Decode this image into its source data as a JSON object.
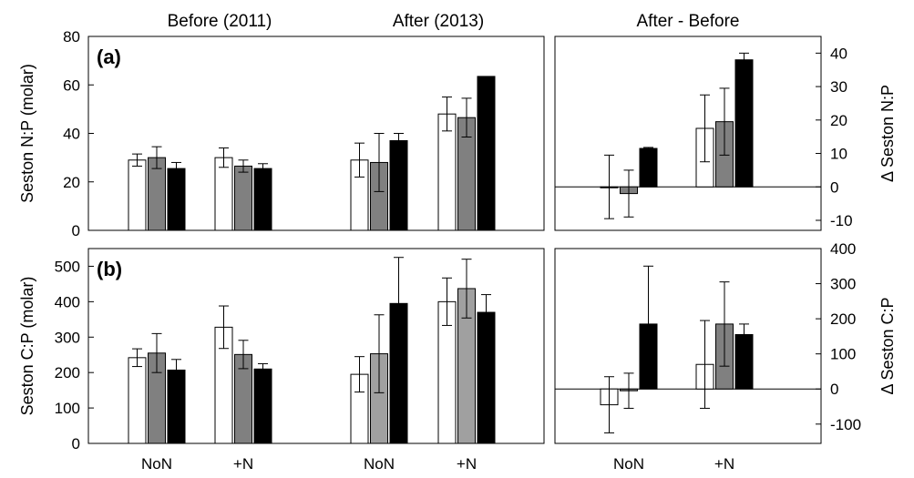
{
  "columns": {
    "before": "Before (2011)",
    "after": "After (2013)",
    "diff": "After - Before"
  },
  "chart_data": [
    {
      "id": "a-before",
      "panel_label": "(a)",
      "type": "bar",
      "ylabel": "Seston N:P (molar)",
      "ylim": [
        0,
        80
      ],
      "yticks": [
        0,
        20,
        40,
        60,
        80
      ],
      "categories": [
        "NoN",
        "+N"
      ],
      "show_categories": false,
      "fills": [
        "#ffffff",
        "#808080",
        "#000000"
      ],
      "values": [
        [
          29,
          30,
          25.5
        ],
        [
          30,
          26.5,
          25.5
        ]
      ],
      "errors": [
        [
          2.5,
          4.5,
          2.5
        ],
        [
          4,
          2.5,
          2
        ]
      ]
    },
    {
      "id": "a-after",
      "type": "bar",
      "ylim": [
        0,
        80
      ],
      "categories": [
        "NoN",
        "+N"
      ],
      "show_categories": false,
      "fills": [
        "#ffffff",
        "#808080",
        "#000000"
      ],
      "values": [
        [
          29,
          28,
          37
        ],
        [
          48,
          46.5,
          63.5
        ]
      ],
      "errors": [
        [
          7,
          12,
          3
        ],
        [
          7,
          8,
          0
        ]
      ]
    },
    {
      "id": "a-diff",
      "type": "bar",
      "ylabel": "Δ Seston N:P",
      "ylim": [
        -13,
        45
      ],
      "yticks": [
        -10,
        0,
        10,
        20,
        30,
        40
      ],
      "categories": [
        "NoN",
        "+N"
      ],
      "show_categories": false,
      "zero_line": true,
      "fills": [
        "#ffffff",
        "#808080",
        "#000000"
      ],
      "values": [
        [
          0,
          -2,
          11.5
        ],
        [
          17.5,
          19.5,
          38
        ]
      ],
      "errors": [
        [
          9.5,
          7,
          0.3
        ],
        [
          10,
          10,
          2
        ]
      ]
    },
    {
      "id": "b-before",
      "panel_label": "(b)",
      "type": "bar",
      "ylabel": "Seston C:P (molar)",
      "ylim": [
        0,
        550
      ],
      "yticks": [
        0,
        100,
        200,
        300,
        400,
        500
      ],
      "categories": [
        "NoN",
        "+N"
      ],
      "fills": [
        "#ffffff",
        "#808080",
        "#000000"
      ],
      "values": [
        [
          242,
          255,
          207
        ],
        [
          328,
          251,
          210
        ]
      ],
      "errors": [
        [
          25,
          55,
          30
        ],
        [
          60,
          40,
          15
        ]
      ]
    },
    {
      "id": "b-after",
      "type": "bar",
      "ylim": [
        0,
        550
      ],
      "categories": [
        "NoN",
        "+N"
      ],
      "fills": [
        "#ffffff",
        "#a0a0a0",
        "#000000"
      ],
      "values": [
        [
          195,
          253,
          395
        ],
        [
          400,
          437,
          370
        ]
      ],
      "errors": [
        [
          50,
          110,
          130
        ],
        [
          67,
          83,
          50
        ]
      ]
    },
    {
      "id": "b-diff",
      "type": "bar",
      "ylabel": "Δ Seston C:P",
      "ylim": [
        -155,
        400
      ],
      "yticks": [
        -100,
        0,
        100,
        200,
        300,
        400
      ],
      "categories": [
        "NoN",
        "+N"
      ],
      "zero_line": true,
      "fills": [
        "#ffffff",
        "#808080",
        "#000000"
      ],
      "values": [
        [
          -45,
          -5,
          185
        ],
        [
          70,
          185,
          155
        ]
      ],
      "errors": [
        [
          80,
          50,
          165
        ],
        [
          125,
          120,
          30
        ]
      ]
    }
  ]
}
